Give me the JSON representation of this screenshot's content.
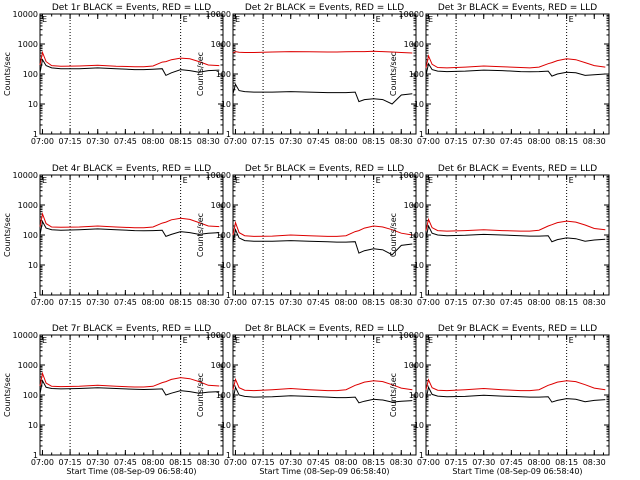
{
  "colors": {
    "events": "#000000",
    "lld": "#dd0000",
    "background": "#ffffff"
  },
  "chart_data": [
    {
      "type": "line",
      "title": "Det 1r BLACK = Events, RED = LLD",
      "ylabel": "Counts/sec",
      "xlabel": "",
      "yscale": "log",
      "ylim": [
        1,
        10000
      ],
      "yticklabels": [
        "1",
        "10",
        "100",
        "1000",
        "10000"
      ],
      "xticklabels": [
        "07:00",
        "07:15",
        "07:30",
        "07:45",
        "08:00",
        "08:15",
        "08:30"
      ],
      "vlines": [
        "07:15",
        "08:15"
      ],
      "vline_labels": [
        "E"
      ],
      "x": [
        "06:58:40",
        "07:00",
        "07:02",
        "07:05",
        "07:10",
        "07:20",
        "07:30",
        "07:40",
        "07:50",
        "07:55",
        "08:00",
        "08:05",
        "08:07",
        "08:10",
        "08:15",
        "08:20",
        "08:25",
        "08:30",
        "08:36"
      ],
      "series": [
        {
          "name": "Events",
          "values": [
            110,
            300,
            190,
            160,
            150,
            150,
            160,
            150,
            140,
            140,
            145,
            150,
            90,
            110,
            140,
            130,
            115,
            130,
            135
          ]
        },
        {
          "name": "LLD",
          "values": [
            200,
            520,
            260,
            190,
            180,
            185,
            195,
            180,
            175,
            175,
            185,
            250,
            260,
            300,
            340,
            320,
            260,
            200,
            190
          ]
        }
      ]
    },
    {
      "type": "line",
      "title": "Det 2r BLACK = Events, RED = LLD",
      "ylabel": "Counts/sec",
      "xlabel": "",
      "yscale": "log",
      "ylim": [
        1,
        10000
      ],
      "yticklabels": [
        "1",
        "10",
        "100",
        "1000",
        "10000"
      ],
      "xticklabels": [
        "07:00",
        "07:15",
        "07:30",
        "07:45",
        "08:00",
        "08:15",
        "08:30"
      ],
      "vlines": [
        "07:15",
        "08:15"
      ],
      "vline_labels": [
        "E"
      ],
      "x": [
        "06:58:40",
        "07:00",
        "07:02",
        "07:05",
        "07:10",
        "07:20",
        "07:30",
        "07:40",
        "07:50",
        "07:55",
        "08:00",
        "08:05",
        "08:07",
        "08:10",
        "08:15",
        "08:20",
        "08:25",
        "08:30",
        "08:36"
      ],
      "series": [
        {
          "name": "Events",
          "values": [
            22,
            45,
            28,
            26,
            25,
            25,
            26,
            25,
            24,
            24,
            24,
            25,
            12,
            14,
            15,
            14,
            10,
            20,
            22
          ]
        },
        {
          "name": "LLD",
          "values": [
            500,
            560,
            530,
            520,
            520,
            540,
            560,
            550,
            540,
            540,
            550,
            560,
            560,
            560,
            570,
            560,
            540,
            520,
            500
          ]
        }
      ]
    },
    {
      "type": "line",
      "title": "Det 3r BLACK = Events, RED = LLD",
      "ylabel": "Counts/sec",
      "xlabel": "",
      "yscale": "log",
      "ylim": [
        1,
        10000
      ],
      "yticklabels": [
        "1",
        "10",
        "100",
        "1000",
        "10000"
      ],
      "xticklabels": [
        "07:00",
        "07:15",
        "07:30",
        "07:45",
        "08:00",
        "08:15",
        "08:30"
      ],
      "vlines": [
        "07:15",
        "08:15"
      ],
      "vline_labels": [
        "E"
      ],
      "x": [
        "06:58:40",
        "07:00",
        "07:02",
        "07:05",
        "07:10",
        "07:20",
        "07:30",
        "07:40",
        "07:50",
        "07:55",
        "08:00",
        "08:05",
        "08:07",
        "08:10",
        "08:15",
        "08:20",
        "08:25",
        "08:30",
        "08:36"
      ],
      "series": [
        {
          "name": "Events",
          "values": [
            90,
            220,
            140,
            125,
            120,
            125,
            135,
            130,
            120,
            118,
            120,
            125,
            85,
            100,
            115,
            110,
            90,
            95,
            100
          ]
        },
        {
          "name": "LLD",
          "values": [
            160,
            400,
            210,
            165,
            160,
            170,
            185,
            175,
            165,
            160,
            170,
            220,
            240,
            280,
            320,
            300,
            240,
            190,
            170
          ]
        }
      ]
    },
    {
      "type": "line",
      "title": "Det 4r BLACK = Events, RED = LLD",
      "ylabel": "Counts/sec",
      "xlabel": "",
      "yscale": "log",
      "ylim": [
        1,
        10000
      ],
      "yticklabels": [
        "1",
        "10",
        "100",
        "1000",
        "10000"
      ],
      "xticklabels": [
        "07:00",
        "07:15",
        "07:30",
        "07:45",
        "08:00",
        "08:15",
        "08:30"
      ],
      "vlines": [
        "07:15",
        "08:15"
      ],
      "vline_labels": [
        "E"
      ],
      "x": [
        "06:58:40",
        "07:00",
        "07:02",
        "07:05",
        "07:10",
        "07:20",
        "07:30",
        "07:40",
        "07:50",
        "07:55",
        "08:00",
        "08:05",
        "08:07",
        "08:10",
        "08:15",
        "08:20",
        "08:25",
        "08:30",
        "08:36"
      ],
      "series": [
        {
          "name": "Events",
          "values": [
            100,
            280,
            170,
            150,
            145,
            150,
            160,
            150,
            140,
            138,
            140,
            145,
            90,
            105,
            130,
            120,
            105,
            115,
            120
          ]
        },
        {
          "name": "LLD",
          "values": [
            190,
            500,
            240,
            185,
            180,
            185,
            200,
            185,
            175,
            175,
            185,
            250,
            270,
            320,
            360,
            330,
            260,
            200,
            190
          ]
        }
      ]
    },
    {
      "type": "line",
      "title": "Det 5r BLACK = Events, RED = LLD",
      "ylabel": "Counts/sec",
      "xlabel": "",
      "yscale": "log",
      "ylim": [
        1,
        10000
      ],
      "yticklabels": [
        "1",
        "10",
        "100",
        "1000",
        "10000"
      ],
      "xticklabels": [
        "07:00",
        "07:15",
        "07:30",
        "07:45",
        "08:00",
        "08:15",
        "08:30"
      ],
      "vlines": [
        "07:15",
        "08:15"
      ],
      "vline_labels": [
        "E"
      ],
      "x": [
        "06:58:40",
        "07:00",
        "07:02",
        "07:05",
        "07:10",
        "07:20",
        "07:30",
        "07:40",
        "07:50",
        "07:55",
        "08:00",
        "08:05",
        "08:07",
        "08:10",
        "08:15",
        "08:20",
        "08:25",
        "08:30",
        "08:36"
      ],
      "series": [
        {
          "name": "Events",
          "values": [
            55,
            150,
            80,
            65,
            62,
            62,
            65,
            62,
            60,
            58,
            58,
            60,
            25,
            30,
            35,
            32,
            22,
            45,
            50
          ]
        },
        {
          "name": "LLD",
          "values": [
            100,
            260,
            120,
            95,
            90,
            92,
            100,
            95,
            90,
            90,
            95,
            130,
            140,
            170,
            200,
            185,
            150,
            115,
            100
          ]
        }
      ]
    },
    {
      "type": "line",
      "title": "Det 6r BLACK = Events, RED = LLD",
      "ylabel": "Counts/sec",
      "xlabel": "",
      "yscale": "log",
      "ylim": [
        1,
        10000
      ],
      "yticklabels": [
        "1",
        "10",
        "100",
        "1000",
        "10000"
      ],
      "xticklabels": [
        "07:00",
        "07:15",
        "07:30",
        "07:45",
        "08:00",
        "08:15",
        "08:30"
      ],
      "vlines": [
        "07:15",
        "08:15"
      ],
      "vline_labels": [
        "E"
      ],
      "x": [
        "06:58:40",
        "07:00",
        "07:02",
        "07:05",
        "07:10",
        "07:20",
        "07:30",
        "07:40",
        "07:50",
        "07:55",
        "08:00",
        "08:05",
        "08:07",
        "08:10",
        "08:15",
        "08:20",
        "08:25",
        "08:30",
        "08:36"
      ],
      "series": [
        {
          "name": "Events",
          "values": [
            75,
            200,
            115,
            100,
            95,
            98,
            105,
            100,
            95,
            92,
            92,
            95,
            60,
            70,
            80,
            75,
            62,
            68,
            72
          ]
        },
        {
          "name": "LLD",
          "values": [
            140,
            330,
            175,
            140,
            135,
            140,
            150,
            140,
            135,
            135,
            145,
            200,
            220,
            260,
            290,
            270,
            215,
            165,
            150
          ]
        }
      ]
    },
    {
      "type": "line",
      "title": "Det 7r BLACK = Events, RED = LLD",
      "ylabel": "Counts/sec",
      "xlabel": "Start Time (08-Sep-09 06:58:40)",
      "yscale": "log",
      "ylim": [
        1,
        10000
      ],
      "yticklabels": [
        "1",
        "10",
        "100",
        "1000",
        "10000"
      ],
      "xticklabels": [
        "07:00",
        "07:15",
        "07:30",
        "07:45",
        "08:00",
        "08:15",
        "08:30"
      ],
      "vlines": [
        "07:15",
        "08:15"
      ],
      "vline_labels": [
        "E"
      ],
      "x": [
        "06:58:40",
        "07:00",
        "07:02",
        "07:05",
        "07:10",
        "07:20",
        "07:30",
        "07:40",
        "07:50",
        "07:55",
        "08:00",
        "08:05",
        "08:07",
        "08:10",
        "08:15",
        "08:20",
        "08:25",
        "08:30",
        "08:36"
      ],
      "series": [
        {
          "name": "Events",
          "values": [
            110,
            300,
            180,
            165,
            160,
            165,
            175,
            165,
            155,
            152,
            155,
            160,
            100,
            115,
            140,
            130,
            115,
            125,
            130
          ]
        },
        {
          "name": "LLD",
          "values": [
            200,
            520,
            250,
            195,
            190,
            195,
            210,
            195,
            185,
            185,
            195,
            260,
            280,
            330,
            380,
            350,
            280,
            210,
            200
          ]
        }
      ]
    },
    {
      "type": "line",
      "title": "Det 8r BLACK = Events, RED = LLD",
      "ylabel": "Counts/sec",
      "xlabel": "Start Time (08-Sep-09 06:58:40)",
      "yscale": "log",
      "ylim": [
        1,
        10000
      ],
      "yticklabels": [
        "1",
        "10",
        "100",
        "1000",
        "10000"
      ],
      "xticklabels": [
        "07:00",
        "07:15",
        "07:30",
        "07:45",
        "08:00",
        "08:15",
        "08:30"
      ],
      "vlines": [
        "07:15",
        "08:15"
      ],
      "vline_labels": [
        "E"
      ],
      "x": [
        "06:58:40",
        "07:00",
        "07:02",
        "07:05",
        "07:10",
        "07:20",
        "07:30",
        "07:40",
        "07:50",
        "07:55",
        "08:00",
        "08:05",
        "08:07",
        "08:10",
        "08:15",
        "08:20",
        "08:25",
        "08:30",
        "08:36"
      ],
      "series": [
        {
          "name": "Events",
          "values": [
            70,
            180,
            100,
            90,
            85,
            88,
            95,
            90,
            85,
            82,
            82,
            85,
            55,
            62,
            72,
            68,
            58,
            62,
            65
          ]
        },
        {
          "name": "LLD",
          "values": [
            150,
            330,
            175,
            145,
            140,
            150,
            165,
            150,
            140,
            140,
            150,
            210,
            230,
            270,
            300,
            280,
            220,
            170,
            150
          ]
        }
      ]
    },
    {
      "type": "line",
      "title": "Det 9r BLACK = Events, RED = LLD",
      "ylabel": "Counts/sec",
      "xlabel": "Start Time (08-Sep-09 06:58:40)",
      "yscale": "log",
      "ylim": [
        1,
        10000
      ],
      "yticklabels": [
        "1",
        "10",
        "100",
        "1000",
        "10000"
      ],
      "xticklabels": [
        "07:00",
        "07:15",
        "07:30",
        "07:45",
        "08:00",
        "08:15",
        "08:30"
      ],
      "vlines": [
        "07:15",
        "08:15"
      ],
      "vline_labels": [
        "E"
      ],
      "x": [
        "06:58:40",
        "07:00",
        "07:02",
        "07:05",
        "07:10",
        "07:20",
        "07:30",
        "07:40",
        "07:50",
        "07:55",
        "08:00",
        "08:05",
        "08:07",
        "08:10",
        "08:15",
        "08:20",
        "08:25",
        "08:30",
        "08:36"
      ],
      "series": [
        {
          "name": "Events",
          "values": [
            70,
            180,
            105,
            92,
            88,
            90,
            98,
            92,
            88,
            85,
            85,
            88,
            58,
            66,
            76,
            72,
            60,
            66,
            70
          ]
        },
        {
          "name": "LLD",
          "values": [
            150,
            320,
            175,
            145,
            140,
            150,
            165,
            150,
            140,
            140,
            150,
            210,
            230,
            270,
            300,
            280,
            220,
            170,
            150
          ]
        }
      ]
    }
  ]
}
